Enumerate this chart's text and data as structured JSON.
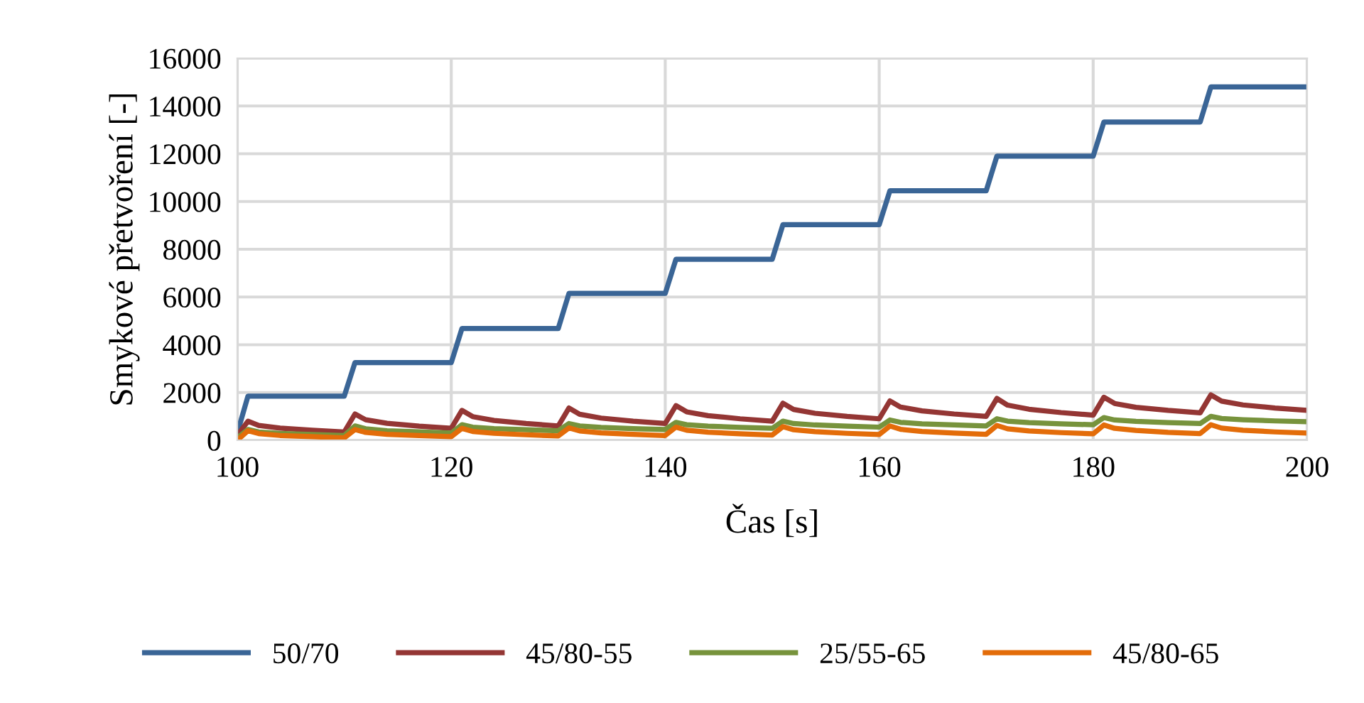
{
  "chart_data": {
    "type": "line",
    "xlabel": "Čas [s]",
    "ylabel": "Smykové přetvoření [-]",
    "xlim": [
      100,
      200
    ],
    "xticks": [
      100,
      120,
      140,
      160,
      180,
      200
    ],
    "ylim": [
      0,
      16000
    ],
    "yticks": [
      0,
      2000,
      4000,
      6000,
      8000,
      10000,
      12000,
      14000,
      16000
    ],
    "grid": true,
    "legend": "bottom",
    "marker": "none",
    "line_style": "solid",
    "series": [
      {
        "name": "50/70",
        "color": "#3a6596",
        "x": [
          100,
          101,
          110,
          111,
          120,
          121,
          130,
          131,
          140,
          141,
          150,
          151,
          160,
          161,
          170,
          171,
          180,
          181,
          190,
          191,
          200
        ],
        "values": [
          300,
          1850,
          1850,
          3250,
          3250,
          4680,
          4680,
          6150,
          6150,
          7580,
          7580,
          9030,
          9030,
          10450,
          10450,
          11900,
          11900,
          13330,
          13330,
          14800,
          14800
        ]
      },
      {
        "name": "45/80-55",
        "color": "#943634",
        "x": [
          100,
          101,
          102,
          104,
          107,
          110,
          111,
          112,
          114,
          117,
          120,
          121,
          122,
          124,
          127,
          130,
          131,
          132,
          134,
          137,
          140,
          141,
          142,
          144,
          147,
          150,
          151,
          152,
          154,
          157,
          160,
          161,
          162,
          164,
          167,
          170,
          171,
          172,
          174,
          177,
          180,
          181,
          182,
          184,
          187,
          190,
          191,
          192,
          194,
          197,
          200
        ],
        "values": [
          200,
          800,
          620,
          510,
          420,
          350,
          1100,
          860,
          710,
          590,
          500,
          1250,
          990,
          830,
          700,
          600,
          1350,
          1090,
          930,
          800,
          700,
          1450,
          1190,
          1030,
          900,
          800,
          1550,
          1290,
          1130,
          1000,
          900,
          1650,
          1390,
          1230,
          1100,
          1000,
          1750,
          1470,
          1300,
          1160,
          1050,
          1800,
          1540,
          1380,
          1250,
          1150,
          1900,
          1640,
          1480,
          1350,
          1250
        ]
      },
      {
        "name": "25/55-65",
        "color": "#77933c",
        "x": [
          100,
          101,
          102,
          104,
          107,
          110,
          111,
          112,
          114,
          117,
          120,
          121,
          122,
          124,
          127,
          130,
          131,
          132,
          134,
          137,
          140,
          141,
          142,
          144,
          147,
          150,
          151,
          152,
          154,
          157,
          160,
          161,
          162,
          164,
          167,
          170,
          171,
          172,
          174,
          177,
          180,
          181,
          182,
          184,
          187,
          190,
          191,
          192,
          194,
          197,
          200
        ],
        "values": [
          100,
          450,
          350,
          290,
          240,
          200,
          600,
          480,
          400,
          350,
          300,
          650,
          550,
          490,
          440,
          400,
          700,
          600,
          540,
          490,
          450,
          750,
          650,
          590,
          540,
          500,
          800,
          700,
          640,
          590,
          550,
          850,
          750,
          690,
          640,
          600,
          900,
          800,
          740,
          690,
          650,
          950,
          850,
          790,
          740,
          700,
          1000,
          910,
          860,
          810,
          780
        ]
      },
      {
        "name": "45/80-65",
        "color": "#e36c09",
        "x": [
          100,
          101,
          102,
          104,
          107,
          110,
          111,
          112,
          114,
          117,
          120,
          121,
          122,
          124,
          127,
          130,
          131,
          132,
          134,
          137,
          140,
          141,
          142,
          144,
          147,
          150,
          151,
          152,
          154,
          157,
          160,
          161,
          162,
          164,
          167,
          170,
          171,
          172,
          174,
          177,
          180,
          181,
          182,
          184,
          187,
          190,
          191,
          192,
          194,
          197,
          200
        ],
        "values": [
          0,
          400,
          280,
          200,
          150,
          100,
          450,
          330,
          250,
          200,
          150,
          500,
          370,
          290,
          230,
          180,
          520,
          390,
          310,
          250,
          200,
          550,
          420,
          340,
          270,
          220,
          570,
          440,
          360,
          290,
          240,
          600,
          460,
          370,
          300,
          250,
          620,
          480,
          390,
          320,
          270,
          640,
          500,
          410,
          330,
          280,
          650,
          510,
          420,
          350,
          300
        ]
      }
    ]
  }
}
